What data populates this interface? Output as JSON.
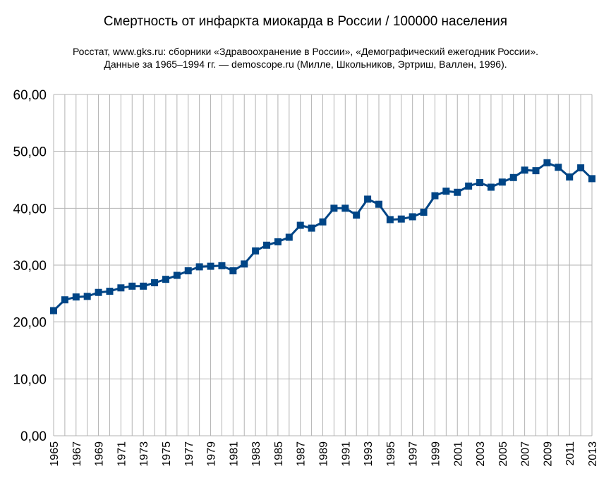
{
  "chart_data": {
    "type": "line",
    "title": "Смертность от инфаркта миокарда в России / 100000 населения",
    "subtitle_lines": [
      "Росстат, www.gks.ru: сборники «Здравоохранение в России», «Демографический ежегодник России».",
      "Данные за 1965–1994 гг. — demoscope.ru (Милле, Школьников, Эртриш, Валлен,  1996)."
    ],
    "xlabel": "",
    "ylabel": "",
    "ylim": [
      0,
      60
    ],
    "yticks": [
      "0,00",
      "10,00",
      "20,00",
      "30,00",
      "40,00",
      "50,00",
      "60,00"
    ],
    "grid": true,
    "legend": "none",
    "series_color": "#004586",
    "x": [
      1965,
      1966,
      1967,
      1968,
      1969,
      1970,
      1971,
      1972,
      1973,
      1974,
      1975,
      1976,
      1977,
      1978,
      1979,
      1980,
      1981,
      1982,
      1983,
      1984,
      1985,
      1986,
      1987,
      1988,
      1989,
      1990,
      1991,
      1992,
      1993,
      1994,
      1995,
      1996,
      1997,
      1998,
      1999,
      2000,
      2001,
      2002,
      2003,
      2004,
      2005,
      2006,
      2007,
      2008,
      2009,
      2010,
      2011,
      2012,
      2013
    ],
    "xtick_labels": [
      "1965",
      "1967",
      "1969",
      "1971",
      "1973",
      "1975",
      "1977",
      "1979",
      "1981",
      "1983",
      "1985",
      "1987",
      "1989",
      "1991",
      "1993",
      "1995",
      "1997",
      "1999",
      "2001",
      "2003",
      "2005",
      "2007",
      "2009",
      "2011",
      "2013"
    ],
    "values": [
      22.0,
      23.9,
      24.4,
      24.5,
      25.2,
      25.4,
      26.0,
      26.3,
      26.3,
      26.9,
      27.5,
      28.2,
      29.0,
      29.7,
      29.8,
      29.9,
      29.0,
      30.2,
      32.5,
      33.5,
      34.1,
      34.9,
      37.0,
      36.5,
      37.6,
      40.0,
      40.0,
      38.8,
      41.6,
      40.7,
      38.0,
      38.1,
      38.5,
      39.3,
      42.2,
      43.0,
      42.8,
      43.9,
      44.5,
      43.7,
      44.6,
      45.4,
      46.7,
      46.6,
      48.0,
      47.2,
      45.5,
      47.1,
      45.2
    ]
  }
}
